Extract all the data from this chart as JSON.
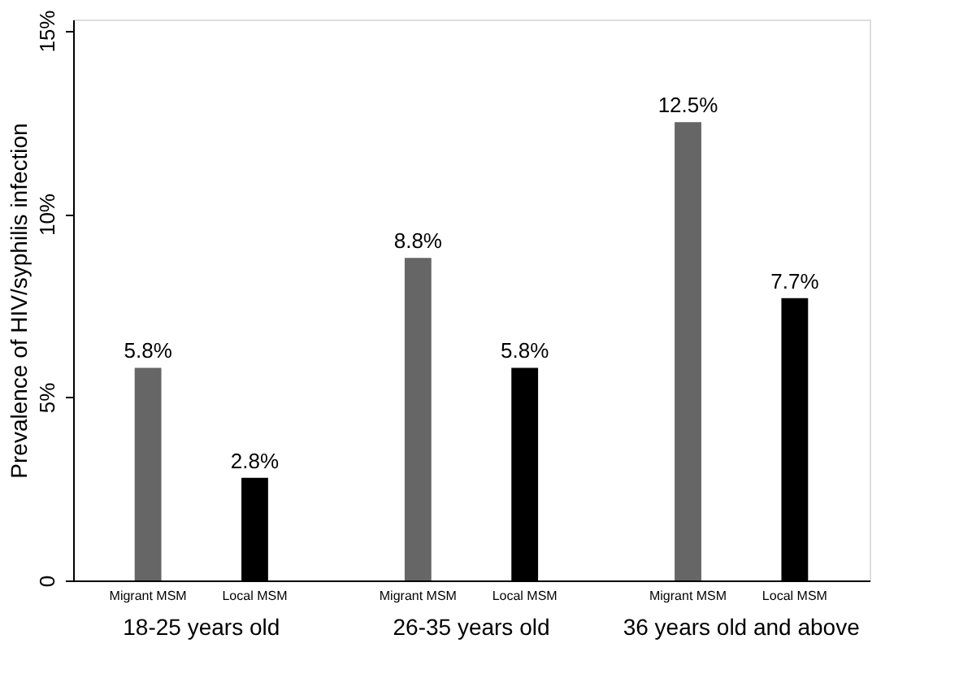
{
  "chart_data": {
    "type": "bar",
    "ylabel": "Prevalence of HIV/syphilis infection",
    "categories": [
      "18-25 years old",
      "26-35 years old",
      "36 years old and above"
    ],
    "series": [
      {
        "name": "Migrant MSM",
        "color": "#666666",
        "values": [
          5.8,
          8.8,
          12.5
        ],
        "value_labels": [
          "5.8%",
          "8.8%",
          "12.5%"
        ]
      },
      {
        "name": "Local MSM",
        "color": "#000000",
        "values": [
          2.8,
          5.8,
          7.7
        ],
        "value_labels": [
          "2.8%",
          "5.8%",
          "7.7%"
        ]
      }
    ],
    "ylim": [
      0,
      15.3
    ],
    "yticks": [
      0,
      {
        "value": 5,
        "label": "5%"
      },
      {
        "value": 10,
        "label": "10%"
      },
      {
        "value": 15,
        "label": "15%"
      }
    ],
    "grid": false
  }
}
